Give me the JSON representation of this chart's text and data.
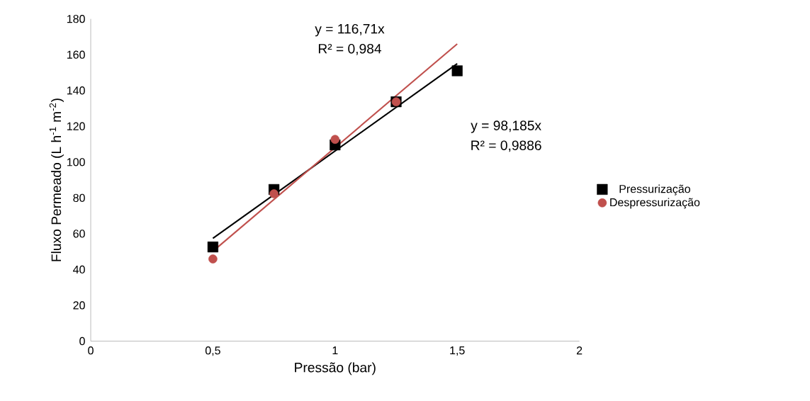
{
  "chart_data": {
    "type": "scatter",
    "xlabel": "Pressão (bar)",
    "ylabel": "Fluxo Permeado (L h$^{-1}$ m$^{-2}$)",
    "xlim": [
      0,
      2
    ],
    "ylim": [
      0,
      180
    ],
    "xticks": [
      0,
      {
        "value": 0.5,
        "label": "0,5"
      },
      1,
      {
        "value": 1.5,
        "label": "1,5"
      },
      2
    ],
    "yticks": [
      0,
      20,
      40,
      60,
      80,
      100,
      120,
      140,
      160,
      180
    ],
    "legend": "right",
    "grid": false,
    "series": [
      {
        "name": "Pressurização",
        "color": "#000000",
        "marker": "square",
        "x": [
          0.5,
          0.75,
          1,
          1.25,
          1.5
        ],
        "values": [
          52.6,
          84.7,
          109.6,
          133.7,
          151
        ]
      },
      {
        "name": "Despressurização",
        "color": "#c0504d",
        "marker": "circle",
        "x": [
          0.5,
          0.75,
          1,
          1.25
        ],
        "values": [
          45.9,
          82.3,
          112.7,
          133.7
        ]
      },
      {
        "type": "line",
        "color": "#000000",
        "marker": "none",
        "x": [
          0.5,
          1.5
        ],
        "values": [
          57.4,
          155
        ]
      },
      {
        "type": "line",
        "color": "#c0504d",
        "marker": "none",
        "x": [
          0.5,
          1.5
        ],
        "values": [
          50.2,
          166
        ]
      }
    ],
    "annotations": [
      "y = 116,71x",
      "R² = 0,984",
      "y = 98,185x",
      "R² = 0,9886"
    ]
  }
}
